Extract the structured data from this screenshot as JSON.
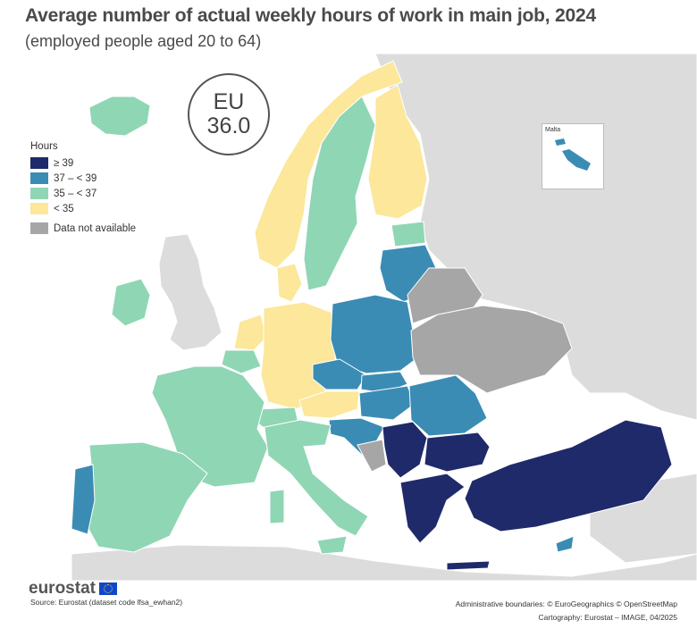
{
  "title": "Average number of actual weekly hours of work in main job, 2024",
  "subtitle": "(employed people aged 20 to 64)",
  "eu": {
    "label": "EU",
    "value": "36.0"
  },
  "legend": {
    "title": "Hours",
    "classes": [
      {
        "label": "≥ 39",
        "color": "#1f2a6b"
      },
      {
        "label": "37 – < 39",
        "color": "#3b8cb4"
      },
      {
        "label": "35 – < 37",
        "color": "#8fd6b5"
      },
      {
        "label": "< 35",
        "color": "#fce79a"
      }
    ],
    "na": {
      "label": "Data not available",
      "color": "#a6a6a6"
    }
  },
  "inset": {
    "label": "Malta"
  },
  "brand": "eurostat",
  "source": "Source: Eurostat (dataset code lfsa_ewhan2)",
  "credits": {
    "boundaries": "Administrative boundaries: © EuroGeographics © OpenStreetMap",
    "cartography": "Cartography: Eurostat – IMAGE, 04/2025"
  },
  "map_data": {
    "classes_by_country": {
      "≥ 39": [
        "Greece",
        "Bulgaria",
        "Türkiye",
        "Serbia",
        "North Macedonia",
        "Albania",
        "Montenegro",
        "Bosnia and Herzegovina"
      ],
      "37 – < 39": [
        "Poland",
        "Czechia",
        "Slovakia",
        "Hungary",
        "Romania",
        "Lithuania",
        "Latvia",
        "Croatia",
        "Slovenia",
        "Portugal",
        "Cyprus",
        "Malta"
      ],
      "35 – < 37": [
        "France",
        "Spain",
        "Italy",
        "Sweden",
        "Estonia",
        "Ireland",
        "Iceland",
        "Belgium",
        "Luxembourg",
        "Switzerland"
      ],
      "< 35": [
        "Germany",
        "Netherlands",
        "Denmark",
        "Finland",
        "Norway",
        "Austria"
      ],
      "Data not available": [
        "Ukraine",
        "Moldova",
        "Belarus",
        "Kosovo"
      ]
    }
  }
}
